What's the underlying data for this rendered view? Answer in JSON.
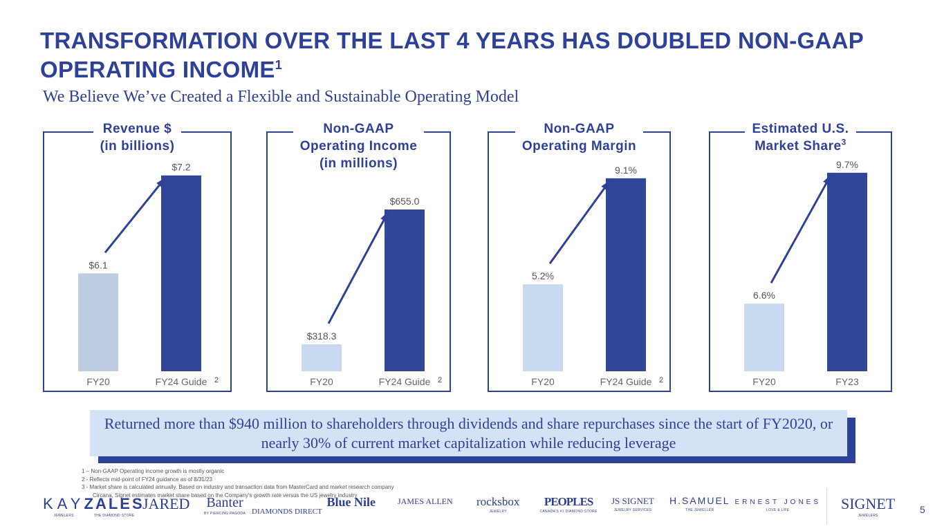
{
  "title": "TRANSFORMATION OVER THE LAST 4 YEARS HAS DOUBLED NON-GAAP OPERATING INCOME",
  "title_sup": "1",
  "subtitle": "We Believe We’ve Created a Flexible and Sustainable Operating Model",
  "chart_data": [
    {
      "type": "bar",
      "title": "Revenue $ (in billions)",
      "categories": [
        "FY20",
        "FY24 Guide"
      ],
      "values": [
        6.1,
        7.2
      ],
      "labels": [
        "$6.1",
        "$7.2"
      ],
      "footnote": "2",
      "ylim": [
        5,
        7.33
      ],
      "colors": [
        "#bccde2",
        "#2e4799"
      ]
    },
    {
      "type": "bar",
      "title": "Non-GAAP Operating Income (in millions)",
      "categories": [
        "FY20",
        "FY24 Guide"
      ],
      "values": [
        318.3,
        655.0
      ],
      "labels": [
        "$318.3",
        "$655.0"
      ],
      "footnote": "2",
      "ylim": [
        250.8,
        769
      ],
      "colors": [
        "#c7daf0",
        "#2e4799"
      ]
    },
    {
      "type": "bar",
      "title": "Non-GAAP Operating Margin",
      "categories": [
        "FY20",
        "FY24 Guide"
      ],
      "values": [
        5.2,
        9.1
      ],
      "labels": [
        "5.2%",
        "9.1%"
      ],
      "footnote": "2",
      "ylim": [
        2,
        9.63
      ],
      "colors": [
        "#c7daf0",
        "#2e4799"
      ]
    },
    {
      "type": "bar",
      "title": "Estimated U.S. Market Share",
      "title_sup": "3",
      "categories": [
        "FY20",
        "FY23"
      ],
      "values": [
        6.6,
        9.7
      ],
      "labels": [
        "6.6%",
        "9.7%"
      ],
      "footnote": "",
      "ylim": [
        5,
        9.91
      ],
      "colors": [
        "#c7daf0",
        "#2e4799"
      ]
    }
  ],
  "banner": "Returned more than $940 million to shareholders through dividends and share repurchases since the start of FY2020, or nearly 30% of current market capitalization while reducing leverage",
  "footnotes": [
    "1 – Non-GAAP Operating income growth is mostly organic",
    "2 - Reflects mid-point of FY24 guidance as of 8/31/23",
    "3 - Market share is calculated annually. Based on industry and transaction data from MasterCard and market research company",
    "Circana, Signet estimates market share based on the Company's  growth rate versus the US jewelry industry"
  ],
  "logos": [
    {
      "name": "KAY",
      "sub": "JEWELERS"
    },
    {
      "name": "ZALES",
      "sub": "THE DIAMOND STORE"
    },
    {
      "name": "JARED",
      "sub": ""
    },
    {
      "name": "Banter",
      "sub": "BY PIERCING PAGODA"
    },
    {
      "name": "DIAMONDS DIRECT",
      "sub": ""
    },
    {
      "name": "Blue Nile",
      "sub": ""
    },
    {
      "name": "JAMES ALLEN",
      "sub": ""
    },
    {
      "name": "rocksbox",
      "sub": "JEWELRY"
    },
    {
      "name": "PEOPLES",
      "sub": "CANADA'S #1 DIAMOND STORE"
    },
    {
      "name": "JS SIGNET",
      "sub": "JEWELRY SERVICES"
    },
    {
      "name": "H.SAMUEL",
      "sub": "THE JEWELLER"
    },
    {
      "name": "ERNEST JONES",
      "sub": "LOVE & LIFE"
    },
    {
      "name": "SIGNET",
      "sub": "JEWELERS"
    }
  ],
  "page_number": "5",
  "colors": {
    "accent": "#2e4199",
    "light_bar": "#c7daf0",
    "dark_bar": "#2e4799",
    "banner_bg": "#d3e2f5"
  }
}
